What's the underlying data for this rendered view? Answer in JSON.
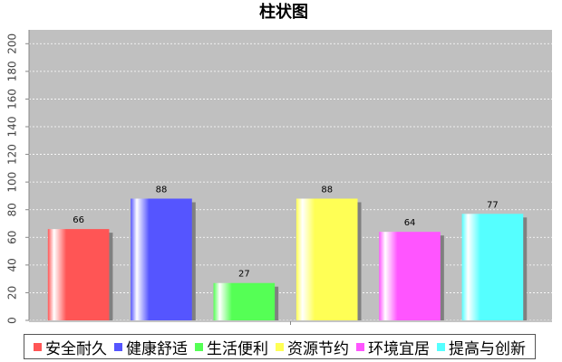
{
  "chart_data": {
    "type": "bar",
    "title": "柱状图",
    "categories": [
      null
    ],
    "series": [
      {
        "name": "安全耐久",
        "color": "#ff5555",
        "values": [
          66
        ]
      },
      {
        "name": "健康舒适",
        "color": "#5555ff",
        "values": [
          88
        ]
      },
      {
        "name": "生活便利",
        "color": "#55ff55",
        "values": [
          27
        ]
      },
      {
        "name": "资源节约",
        "color": "#ffff55",
        "values": [
          88
        ]
      },
      {
        "name": "环境宜居",
        "color": "#ff55ff",
        "values": [
          64
        ]
      },
      {
        "name": "提高与创新",
        "color": "#55ffff",
        "values": [
          77
        ]
      }
    ],
    "ylim": [
      0,
      210
    ],
    "yticks": [
      0,
      20,
      40,
      60,
      80,
      100,
      120,
      140,
      160,
      180,
      200
    ],
    "grid": true
  }
}
